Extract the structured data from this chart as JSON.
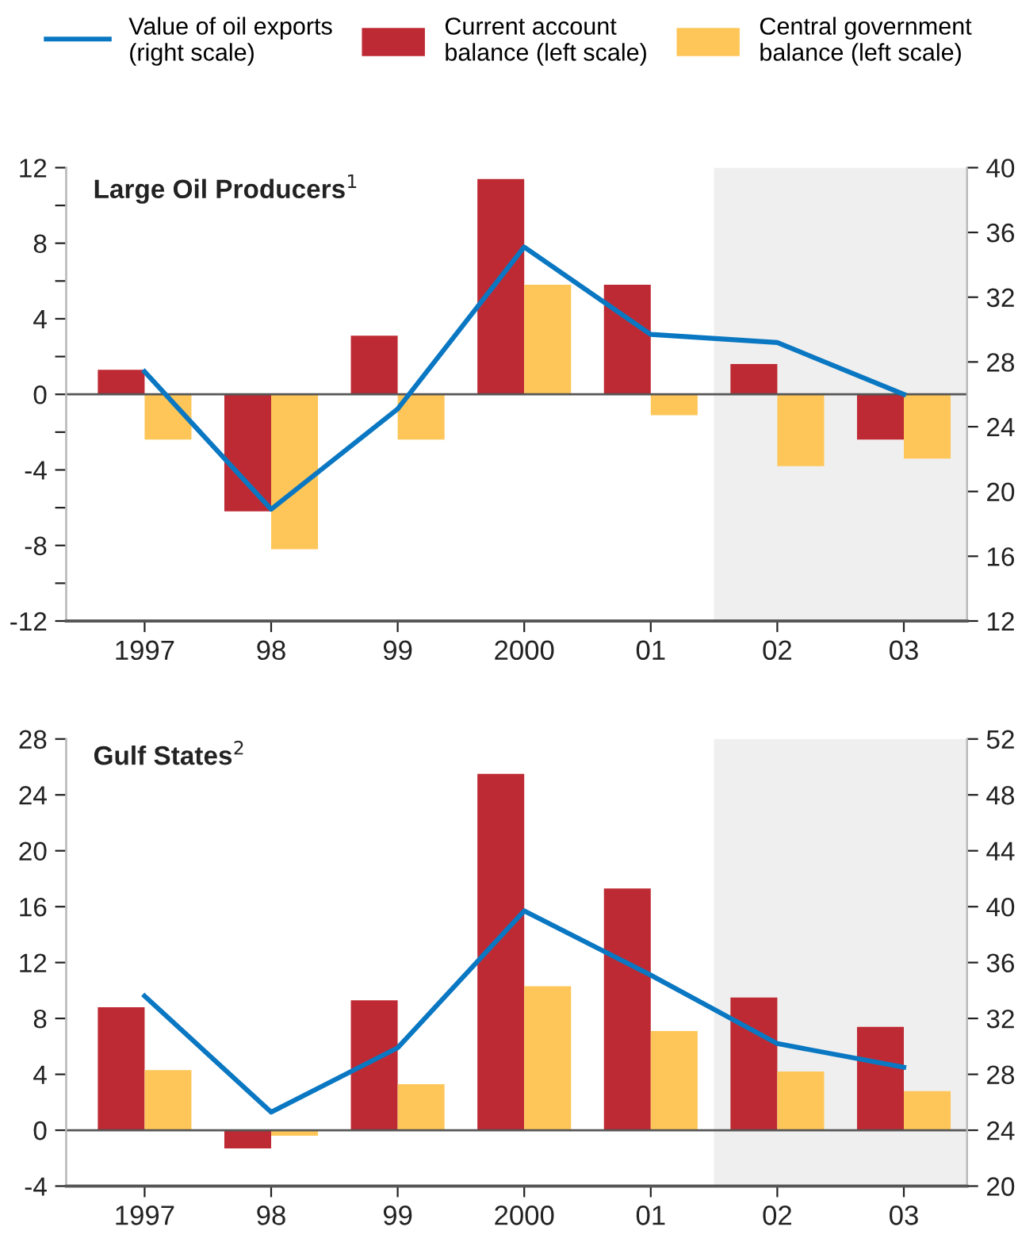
{
  "chart_data": [
    {
      "type": "bar",
      "title": "Large Oil Producers$^{1}$",
      "categories": [
        "1997",
        "98",
        "99",
        "2000",
        "01",
        "02",
        "03"
      ],
      "series": [
        {
          "name": "Value of oil exports\n(right scale)",
          "type": "line",
          "axis": "y2",
          "color": "#0a77c2",
          "values": [
            27.4,
            18.9,
            25.1,
            35.1,
            29.7,
            29.2,
            26.0
          ]
        },
        {
          "name": "Current account\nbalance (left scale)",
          "color": "#be2a33",
          "values": [
            1.3,
            -6.2,
            3.1,
            11.4,
            5.8,
            1.6,
            -2.4
          ]
        },
        {
          "name": "Central government\nbalance (left scale)",
          "color": "#fec659",
          "values": [
            -2.4,
            -8.2,
            -2.4,
            5.8,
            -1.1,
            -3.8,
            -3.4
          ]
        }
      ],
      "ylim": [
        -12,
        12
      ],
      "yticks": [
        -12,
        {
          "value": -10,
          "label": null
        },
        -8,
        {
          "value": -6,
          "label": null
        },
        -4,
        {
          "value": -2,
          "label": null
        },
        0,
        {
          "value": 2,
          "label": null
        },
        4,
        {
          "value": 6,
          "label": null
        },
        8,
        {
          "value": 10,
          "label": null
        },
        12
      ],
      "y2lim": [
        12,
        40
      ],
      "y2ticks": [
        12,
        16,
        20,
        24,
        28,
        32,
        36,
        40
      ],
      "ref_lines": [
        {
          "axis": "y",
          "value": 0,
          "color": "#555555"
        }
      ],
      "bands": [
        {
          "axis": "x",
          "from": "02",
          "to": "03",
          "color": "#efefef"
        }
      ],
      "legend": "top",
      "grid": false
    },
    {
      "type": "bar",
      "title": "Gulf States$^{2}$",
      "categories": [
        "1997",
        "98",
        "99",
        "2000",
        "01",
        "02",
        "03"
      ],
      "series": [
        {
          "type": "line",
          "axis": "y2",
          "color": "#0a77c2",
          "values": [
            33.6,
            25.3,
            29.9,
            39.7,
            35.1,
            30.2,
            28.5
          ]
        },
        {
          "color": "#be2a33",
          "values": [
            8.8,
            -1.3,
            9.3,
            25.5,
            17.3,
            9.5,
            7.4
          ]
        },
        {
          "color": "#fec659",
          "values": [
            4.3,
            -0.4,
            3.3,
            10.3,
            7.1,
            4.2,
            2.8
          ]
        }
      ],
      "ylim": [
        -4,
        28
      ],
      "yticks": [
        -4,
        0,
        4,
        8,
        12,
        16,
        20,
        24,
        28
      ],
      "y2lim": [
        20,
        52
      ],
      "y2ticks": [
        20,
        24,
        28,
        32,
        36,
        40,
        44,
        48,
        52
      ],
      "ref_lines": [
        {
          "axis": "y",
          "value": 0,
          "color": "#555555"
        }
      ],
      "bands": [
        {
          "axis": "x",
          "from": "02",
          "to": "03",
          "color": "#efefef"
        }
      ],
      "grid": false
    }
  ]
}
